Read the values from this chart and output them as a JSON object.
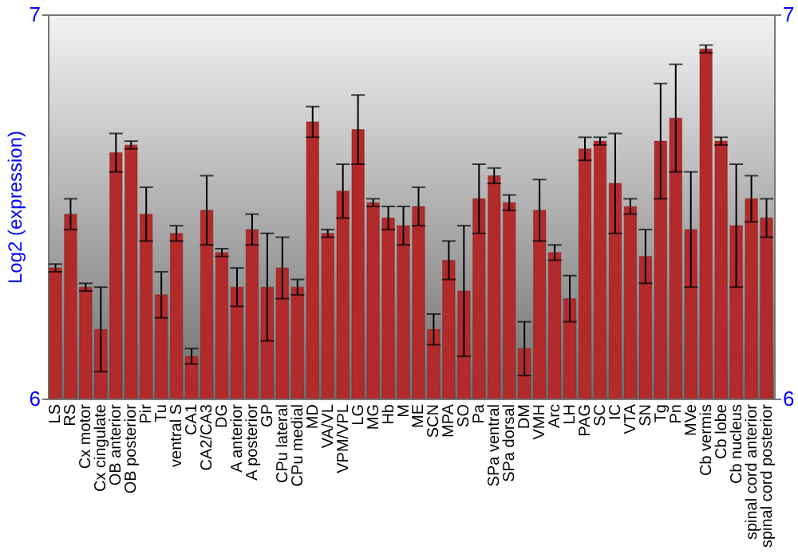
{
  "chart_data": {
    "type": "bar",
    "ylabel": "Log2 (expression)",
    "categories": [
      "LS",
      "RS",
      "Cx motor",
      "Cx cingulate",
      "OB anterior",
      "OB posterior",
      "Pir",
      "Tu",
      "ventral S",
      "CA1",
      "CA2/CA3",
      "DG",
      "A anterior",
      "A posterior",
      "GP",
      "CPu lateral",
      "CPu medial",
      "MD",
      "VA/VL",
      "VPM/VPL",
      "LG",
      "MG",
      "Hb",
      "M",
      "ME",
      "SCN",
      "MPA",
      "SO",
      "Pa",
      "SPa ventral",
      "SPa dorsal",
      "DM",
      "VMH",
      "Arc",
      "LH",
      "PAG",
      "SC",
      "IC",
      "VTA",
      "SN",
      "Tg",
      "Pn",
      "MVe",
      "Cb vermis",
      "Cb lobe",
      "Cb nucleus",
      "spinal cord anterior",
      "spinal cord posterior"
    ],
    "values": [
      6.34,
      6.48,
      6.29,
      6.18,
      6.64,
      6.66,
      6.48,
      6.27,
      6.43,
      6.11,
      6.49,
      6.38,
      6.29,
      6.44,
      6.29,
      6.34,
      6.29,
      6.72,
      6.43,
      6.54,
      6.7,
      6.51,
      6.47,
      6.45,
      6.5,
      6.18,
      6.36,
      6.28,
      6.52,
      6.58,
      6.51,
      6.13,
      6.49,
      6.38,
      6.26,
      6.65,
      6.67,
      6.56,
      6.5,
      6.37,
      6.67,
      6.73,
      6.44,
      6.91,
      6.67,
      6.45,
      6.52,
      6.47
    ],
    "errors": [
      0.01,
      0.04,
      0.01,
      0.11,
      0.05,
      0.01,
      0.07,
      0.06,
      0.02,
      0.02,
      0.09,
      0.01,
      0.05,
      0.04,
      0.14,
      0.08,
      0.02,
      0.04,
      0.01,
      0.07,
      0.09,
      0.01,
      0.03,
      0.05,
      0.05,
      0.04,
      0.05,
      0.17,
      0.09,
      0.02,
      0.02,
      0.07,
      0.08,
      0.02,
      0.06,
      0.03,
      0.01,
      0.13,
      0.02,
      0.07,
      0.15,
      0.14,
      0.15,
      0.01,
      0.01,
      0.16,
      0.06,
      0.05
    ],
    "color": "#b22a2a",
    "ylim": [
      6,
      7
    ],
    "yticks": [
      6,
      7
    ],
    "y2lim": [
      6,
      7
    ],
    "y2ticks": [
      6,
      7
    ],
    "grid": false
  }
}
